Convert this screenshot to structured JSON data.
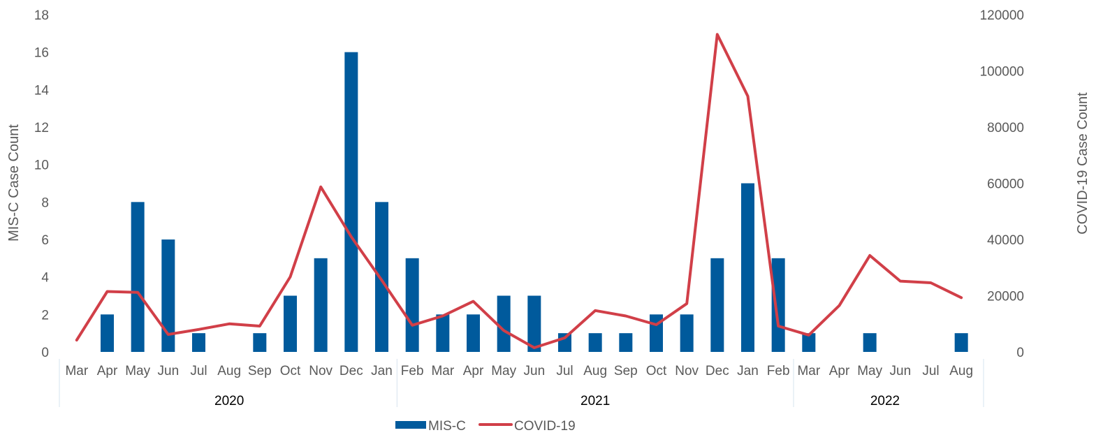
{
  "chart_data": {
    "type": "bar",
    "categories": [
      "Mar",
      "Apr",
      "May",
      "Jun",
      "Jul",
      "Aug",
      "Sep",
      "Oct",
      "Nov",
      "Dec",
      "Jan",
      "Feb",
      "Mar",
      "Apr",
      "May",
      "Jun",
      "Jul",
      "Aug",
      "Sep",
      "Oct",
      "Nov",
      "Dec",
      "Jan",
      "Feb",
      "Mar",
      "Apr",
      "May",
      "Jun",
      "Jul",
      "Aug"
    ],
    "year_groups": [
      {
        "label": "2020",
        "start": 0,
        "end": 10
      },
      {
        "label": "2021",
        "start": 11,
        "end": 23
      },
      {
        "label": "2022",
        "start": 24,
        "end": 29
      }
    ],
    "series": [
      {
        "name": "MIS-C",
        "type": "bar",
        "axis": "left",
        "color": "#005a9c",
        "values": [
          0,
          2,
          8,
          6,
          1,
          0,
          1,
          3,
          5,
          16,
          8,
          5,
          2,
          2,
          3,
          3,
          1,
          1,
          1,
          2,
          2,
          5,
          9,
          5,
          1,
          0,
          1,
          0,
          0,
          1
        ]
      },
      {
        "name": "COVID-19",
        "type": "line",
        "axis": "right",
        "color": "#d13f48",
        "values": [
          4200,
          21500,
          21200,
          6200,
          8000,
          10000,
          9200,
          26700,
          58700,
          41000,
          25500,
          9500,
          12800,
          18000,
          7600,
          1500,
          5000,
          14700,
          12800,
          9700,
          17200,
          113000,
          91000,
          9200,
          6000,
          16500,
          34300,
          25200,
          24600,
          19300
        ]
      }
    ],
    "ylabel": "MIS-C Case Count",
    "y2label": "COVID-19 Case Count",
    "ylim": [
      0,
      18
    ],
    "y2lim": [
      0,
      120000
    ],
    "yticks": [
      "0",
      "2",
      "4",
      "6",
      "8",
      "10",
      "12",
      "14",
      "16",
      "18"
    ],
    "y2ticks": [
      "0",
      "20000",
      "40000",
      "60000",
      "80000",
      "100000",
      "120000"
    ],
    "legend_position": "bottom-center",
    "grid": false
  }
}
